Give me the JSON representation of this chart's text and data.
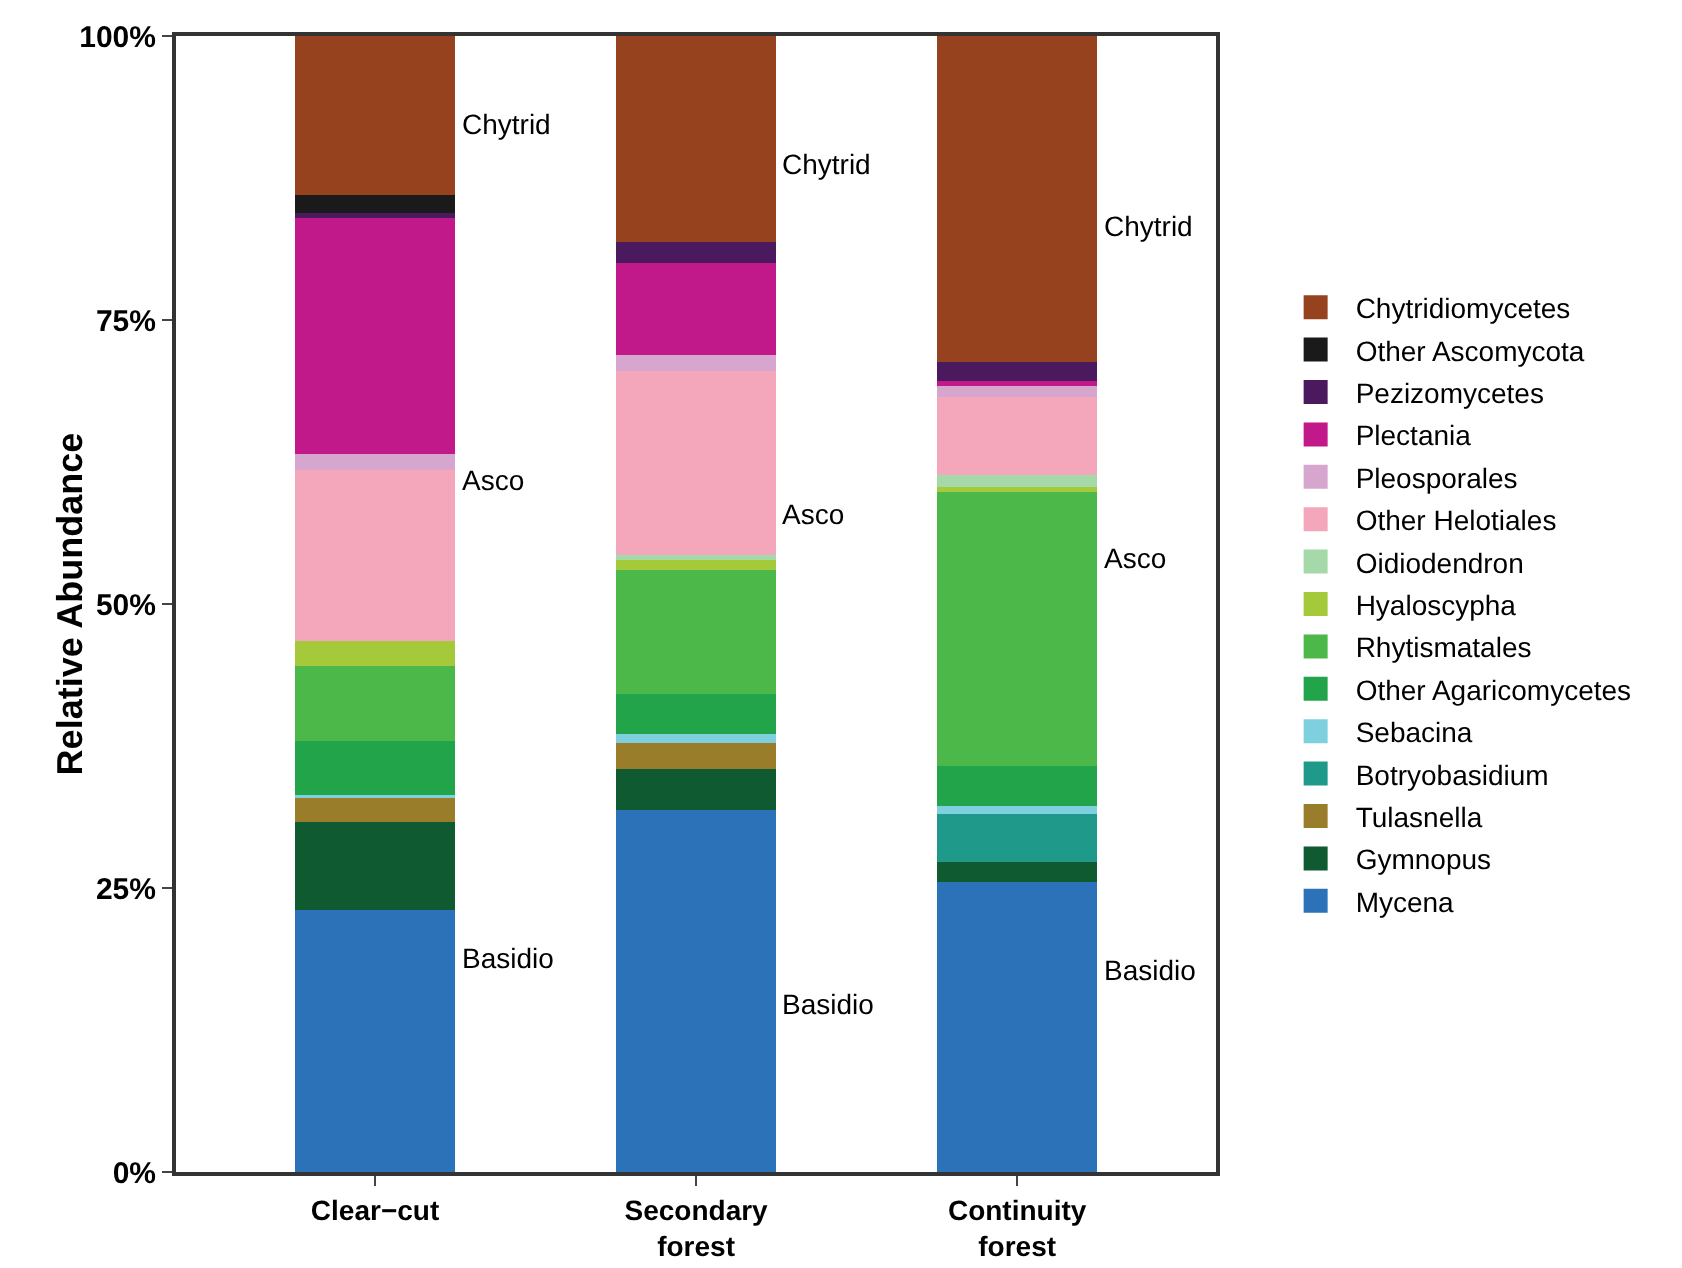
{
  "chart_data": {
    "type": "bar",
    "stacked": true,
    "ylabel": "Relative Abundance",
    "categories": [
      "Clear−cut",
      "Secondary forest",
      "Continuity forest"
    ],
    "ylim": [
      0,
      100
    ],
    "yticks": [
      {
        "value": 0,
        "label": "0%"
      },
      {
        "value": 25,
        "label": "25%"
      },
      {
        "value": 50,
        "label": "50%"
      },
      {
        "value": 75,
        "label": "75%"
      },
      {
        "value": 100,
        "label": "100%"
      }
    ],
    "grid": false,
    "legend": "right",
    "series": [
      {
        "name": "Mycena",
        "color": "#2c72b9",
        "values": [
          23.1,
          31.9,
          25.5
        ]
      },
      {
        "name": "Gymnopus",
        "color": "#0f5a30",
        "values": [
          7.7,
          3.6,
          1.8
        ]
      },
      {
        "name": "Tulasnella",
        "color": "#9a7d2a",
        "values": [
          2.2,
          2.3,
          0
        ]
      },
      {
        "name": "Botryobasidium",
        "color": "#1f9a8a",
        "values": [
          0,
          0,
          4.2
        ]
      },
      {
        "name": "Sebacina",
        "color": "#7fd0df",
        "values": [
          0.2,
          0.8,
          0.7
        ]
      },
      {
        "name": "Other Agaricomycetes",
        "color": "#22a44a",
        "values": [
          4.7,
          3.5,
          3.5
        ]
      },
      {
        "name": "Rhytismatales",
        "color": "#4cb84a",
        "values": [
          6.6,
          10.9,
          24.3
        ]
      },
      {
        "name": "Hyaloscypha",
        "color": "#a4c93a",
        "values": [
          2.2,
          0.9,
          0.3
        ]
      },
      {
        "name": "Oidiodendron",
        "color": "#a6d9a9",
        "values": [
          0,
          0.4,
          1.1
        ]
      },
      {
        "name": "Other Helotiales",
        "color": "#f4a6ba",
        "values": [
          15.1,
          16.2,
          6.8
        ]
      },
      {
        "name": "Pleosporales",
        "color": "#d7a6cf",
        "values": [
          1.4,
          1.4,
          1.1
        ]
      },
      {
        "name": "Plectania",
        "color": "#c2198a",
        "values": [
          20.9,
          8.1,
          0.3
        ]
      },
      {
        "name": "Pezizomycetes",
        "color": "#4b1a5e",
        "values": [
          0.3,
          1.9,
          1.7
        ]
      },
      {
        "name": "Other Ascomycota",
        "color": "#1a1a1a",
        "values": [
          1.6,
          0,
          0
        ]
      },
      {
        "name": "Chytridiomycetes",
        "color": "#97421f",
        "values": [
          14.0,
          18.1,
          28.7
        ]
      }
    ],
    "annotations": [
      "Chytrid",
      "Asco",
      "Basidio",
      "Chytrid",
      "Asco",
      "Basidio",
      "Chytrid",
      "Asco",
      "Basidio"
    ]
  }
}
